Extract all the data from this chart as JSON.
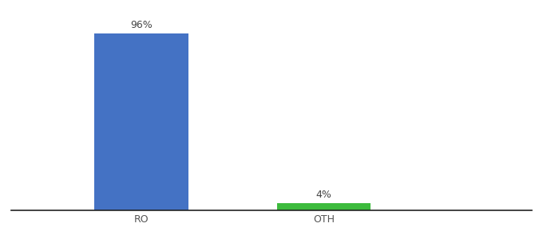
{
  "categories": [
    "RO",
    "OTH"
  ],
  "values": [
    96,
    4
  ],
  "bar_colors": [
    "#4472c4",
    "#3dbb3d"
  ],
  "background_color": "#ffffff",
  "ylim": [
    0,
    105
  ],
  "x_positions": [
    0.25,
    0.6
  ],
  "bar_width": 0.18,
  "label_fontsize": 9,
  "tick_fontsize": 9,
  "xlabel_color": "#555555",
  "spine_color": "#222222",
  "label_color": "#444444",
  "xlim": [
    0.0,
    1.0
  ]
}
